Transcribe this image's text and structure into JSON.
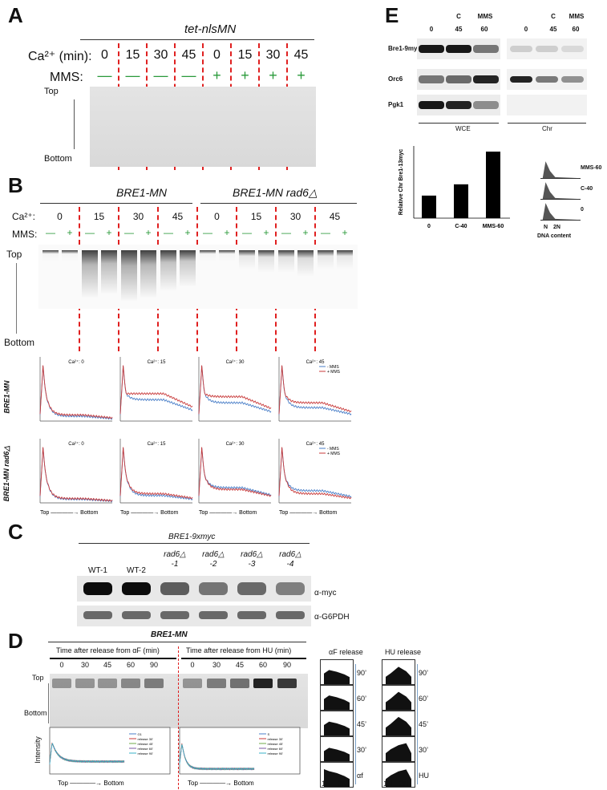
{
  "panelA": {
    "letter": "A",
    "title": "tet-nlsMN",
    "ca_label": "Ca²⁺ (min):",
    "mms_label": "MMS:",
    "times": [
      "0",
      "15",
      "30",
      "45",
      "0",
      "15",
      "30",
      "45"
    ],
    "mms": [
      "—",
      "—",
      "—",
      "—",
      "+",
      "+",
      "+",
      "+"
    ],
    "top": "Top",
    "bottom": "Bottom"
  },
  "panelB": {
    "letter": "B",
    "title_left": "BRE1-MN",
    "title_right": "BRE1-MN rad6△",
    "ca_label": "Ca²⁺:",
    "mms_label": "MMS:",
    "times": [
      "0",
      "15",
      "30",
      "45",
      "0",
      "15",
      "30",
      "45"
    ],
    "mms_pair": [
      "—",
      "+"
    ],
    "top": "Top",
    "bottom": "Bottom",
    "row1_label": "BRE1-MN",
    "row2_label": "BRE1-MN rad6△",
    "plot_titles": [
      "Ca²⁺: 0",
      "Ca²⁺: 15",
      "Ca²⁺: 30",
      "Ca²⁺: 45"
    ],
    "legend": [
      "- MMS",
      "+ MMS"
    ],
    "axis_bottom": "Top ————→ Bottom"
  },
  "panelC": {
    "letter": "C",
    "title": "BRE1-9xmyc",
    "lanes": [
      "WT-1",
      "WT-2",
      "rad6△\n-1",
      "rad6△\n-2",
      "rad6△\n-3",
      "rad6△\n-4"
    ],
    "row1": "α-myc",
    "row2": "α-G6PDH"
  },
  "panelD": {
    "letter": "D",
    "title": "BRE1-MN",
    "left_header": "Time after release from αF (min)",
    "right_header": "Time after release from HU (min)",
    "times": [
      "0",
      "30",
      "45",
      "60",
      "90",
      "0",
      "30",
      "45",
      "60",
      "90"
    ],
    "top": "Top",
    "bottom": "Bottom",
    "ylabel": "Intensity",
    "axis_bottom": "Top ————→ Bottom",
    "legend_left": [
      "G1",
      "release 30'",
      "release 45'",
      "release 60'",
      "release 90'"
    ],
    "legend_right": [
      "S",
      "release 30'",
      "release 45'",
      "release 60'",
      "release 90'"
    ],
    "af_title": "αF release",
    "hu_title": "HU release",
    "af_labels": [
      "90’",
      "60’",
      "45’",
      "30’",
      "αf"
    ],
    "hu_labels": [
      "90’",
      "60’",
      "45’",
      "30’",
      "HU"
    ],
    "dna_axis": [
      "1N",
      "2N"
    ]
  },
  "panelE": {
    "letter": "E",
    "col_top": [
      "C",
      "MMS"
    ],
    "col_bottom": [
      "0",
      "45",
      "60"
    ],
    "rows": [
      "Bre1-9myc",
      "Orc6",
      "Pgk1"
    ],
    "wce": "WCE",
    "chr": "Chr",
    "chart_data": {
      "type": "bar",
      "categories": [
        "0",
        "C-40",
        "MMS-60"
      ],
      "values": [
        1.0,
        1.5,
        2.95
      ],
      "ylabel": "Relative Chr Bre1-13myc",
      "ylim": [
        0,
        3.2
      ]
    },
    "facs_labels": [
      "MMS-60",
      "C-40",
      "0"
    ],
    "facs_axis": [
      "N",
      "2N"
    ],
    "facs_title": "DNA content"
  },
  "colors": {
    "dash": "#e02020",
    "blue": "#4a7fc8",
    "red": "#c83a3a",
    "green": "#2a9a3a"
  }
}
